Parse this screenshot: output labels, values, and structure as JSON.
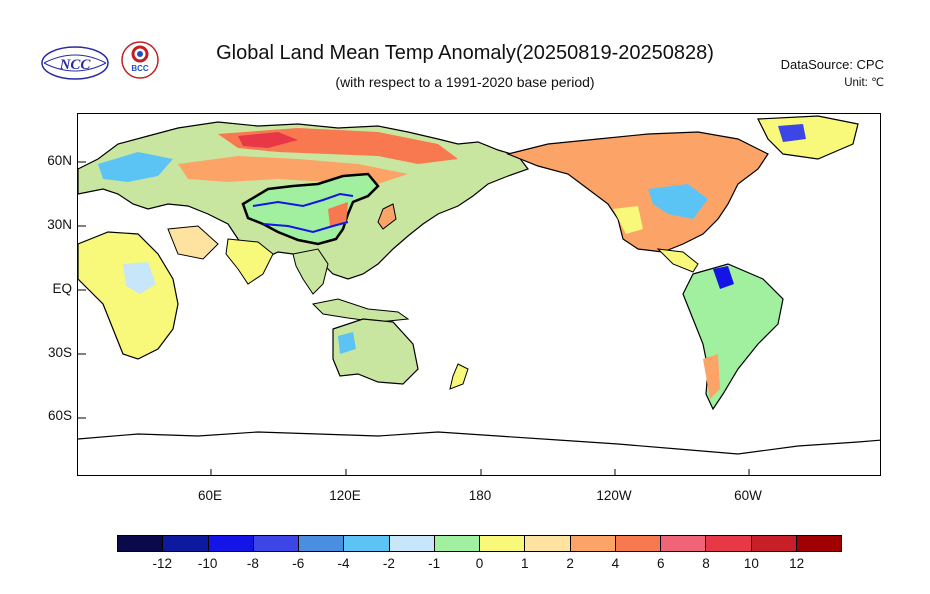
{
  "header": {
    "title": "Global Land Mean Temp Anomaly(20250819-20250828)",
    "subtitle": "(with respect to a 1991-2020 base period)",
    "datasource": "DataSource:  CPC",
    "unit": "Unit:  ℃"
  },
  "logos": {
    "ncc_text": "NCC",
    "bcc_text": "BCC"
  },
  "map": {
    "lat_labels": [
      "60N",
      "30N",
      "EQ",
      "30S",
      "60S"
    ],
    "lon_labels": [
      "60E",
      "120E",
      "180",
      "120W",
      "60W"
    ],
    "lon_range": [
      "0E",
      "360E"
    ],
    "lat_range": [
      "90S",
      "90N"
    ],
    "notable_regions": {
      "china_outline": "black",
      "major_rivers": "blue"
    }
  },
  "colorbar": {
    "labels": [
      "-12",
      "-10",
      "-8",
      "-6",
      "-4",
      "-2",
      "-1",
      "0",
      "1",
      "2",
      "4",
      "6",
      "8",
      "10",
      "12"
    ],
    "colors": [
      "#0a0a4a",
      "#0b1a9e",
      "#1414e6",
      "#3c46e6",
      "#4a8ee0",
      "#5cc4f4",
      "#c8e6fa",
      "#a0f0a0",
      "#f8f87a",
      "#fde2a0",
      "#fca468",
      "#f87850",
      "#f06478",
      "#e83848",
      "#c81e28",
      "#a00000"
    ]
  }
}
